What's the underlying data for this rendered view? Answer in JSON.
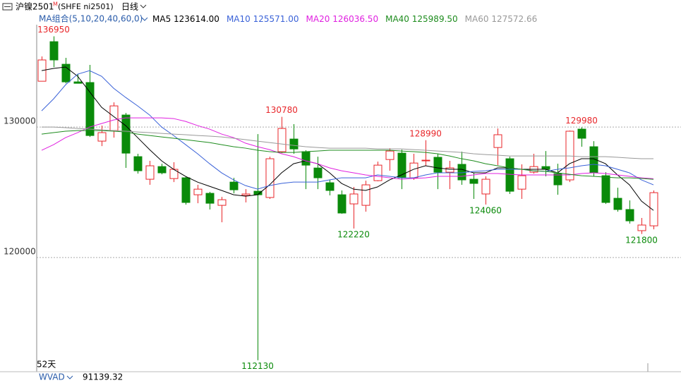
{
  "chart_data": {
    "type": "candlestick",
    "title": "沪镍2501",
    "title_badge": "M",
    "subtitle": "(SHFE ni2501)",
    "period": "日线",
    "indicator": "MA组合(5,10,20,40,60,0)",
    "x_label": "52天",
    "open": [
      133510,
      136540,
      134810,
      133460,
      133410,
      128920,
      129730,
      130920,
      127730,
      126000,
      126970,
      126050,
      126110,
      124810,
      124920,
      124000,
      125780,
      124760,
      125080,
      124600,
      128110,
      129080,
      128110,
      126860,
      125730,
      124810,
      124110,
      124000,
      125890,
      127510,
      128000,
      126110,
      127410,
      127680,
      126540,
      127140,
      126000,
      124870,
      128430,
      127570,
      125240,
      126540,
      126970,
      126430,
      125950,
      129840,
      128490,
      126270,
      124540,
      123680,
      122060,
      122430
    ],
    "high": [
      135410,
      136950,
      135300,
      134050,
      134760,
      130110,
      131890,
      131080,
      127950,
      127410,
      127190,
      127300,
      126220,
      125570,
      125030,
      124650,
      126110,
      125240,
      129460,
      127730,
      130780,
      130220,
      128220,
      127730,
      125950,
      125140,
      125410,
      125890,
      127350,
      128380,
      128270,
      127950,
      128990,
      127950,
      127410,
      128110,
      126490,
      126220,
      129890,
      127730,
      127140,
      127950,
      128160,
      127190,
      129730,
      129980,
      128920,
      126540,
      125350,
      124380,
      123030,
      125140
    ],
    "low": [
      133510,
      134590,
      133350,
      133350,
      129240,
      128540,
      129190,
      126870,
      126430,
      125570,
      126380,
      125780,
      124050,
      124160,
      123680,
      122700,
      124920,
      124220,
      112130,
      124490,
      128000,
      127950,
      125240,
      125240,
      124760,
      123350,
      122220,
      123510,
      125840,
      126650,
      125240,
      125950,
      127030,
      125240,
      125240,
      125570,
      124490,
      124060,
      127080,
      124870,
      124490,
      126430,
      126220,
      124810,
      125780,
      128490,
      126220,
      124110,
      123510,
      122600,
      121800,
      122160
    ],
    "close": [
      135140,
      135140,
      133460,
      133350,
      129350,
      129570,
      131620,
      128000,
      126650,
      127030,
      126490,
      126760,
      124220,
      125240,
      124160,
      124430,
      125190,
      124870,
      124810,
      127570,
      129890,
      128320,
      127080,
      126110,
      125140,
      123410,
      124870,
      125570,
      127080,
      128160,
      126110,
      127240,
      127460,
      126540,
      126870,
      125950,
      125680,
      126000,
      129410,
      125080,
      126270,
      126970,
      126760,
      125570,
      129680,
      129140,
      126490,
      124220,
      123680,
      122810,
      122490,
      124970
    ],
    "up_color": "#e8262a",
    "down_color": "#0a8a0a",
    "series": [
      {
        "name": "MA5",
        "color": "#000000",
        "current": {
          "value": 123614,
          "label": "123614.00"
        },
        "values": [
          134320,
          134490,
          134600,
          133890,
          132700,
          131510,
          130810,
          130110,
          129190,
          128270,
          127410,
          126760,
          126220,
          125780,
          125460,
          125140,
          124810,
          124700,
          124810,
          125570,
          126490,
          127190,
          127410,
          127190,
          126490,
          125680,
          125240,
          125140,
          125410,
          125950,
          126330,
          126760,
          127030,
          126870,
          126760,
          126760,
          126490,
          126490,
          126870,
          126870,
          126760,
          126760,
          126760,
          126490,
          127190,
          127570,
          127570,
          127190,
          126330,
          125570,
          124320,
          123614
        ]
      },
      {
        "name": "MA10",
        "color": "#3a62d8",
        "current": {
          "value": 125571,
          "label": "125571.00"
        },
        "values": [
          131240,
          132160,
          133240,
          134050,
          134320,
          133890,
          132970,
          132270,
          131620,
          130920,
          130000,
          129350,
          128650,
          127950,
          127190,
          126490,
          125950,
          125510,
          125240,
          125510,
          125680,
          125780,
          125780,
          125780,
          125950,
          126110,
          126110,
          126110,
          126330,
          126220,
          126110,
          126110,
          126330,
          126490,
          126490,
          126490,
          126600,
          126650,
          126760,
          126760,
          126760,
          126650,
          126600,
          126760,
          126870,
          127030,
          127140,
          127030,
          126760,
          126490,
          125950,
          125571
        ]
      },
      {
        "name": "MA20",
        "color": "#e020e0",
        "current": {
          "value": 126036.5,
          "label": "126036.50"
        },
        "values": [
          128220,
          128650,
          129190,
          129570,
          130000,
          130270,
          130540,
          130700,
          130700,
          130700,
          130700,
          130650,
          130430,
          130110,
          129840,
          129460,
          129190,
          128760,
          128490,
          128270,
          127950,
          127730,
          127410,
          127190,
          126870,
          126650,
          126490,
          126330,
          126220,
          126110,
          126000,
          126060,
          126110,
          126220,
          126220,
          126220,
          126330,
          126440,
          126440,
          126380,
          126330,
          126330,
          126330,
          126330,
          126330,
          126440,
          126490,
          126440,
          126330,
          126220,
          126110,
          126036.5
        ]
      },
      {
        "name": "MA40",
        "color": "#1e8c1e",
        "current": {
          "value": 125989.5,
          "label": "125989.50"
        },
        "values": [
          129460,
          129570,
          129680,
          129730,
          129730,
          129730,
          129680,
          129620,
          129460,
          129350,
          129240,
          129140,
          129030,
          128920,
          128810,
          128650,
          128490,
          128380,
          128220,
          128110,
          128050,
          128050,
          128110,
          128160,
          128220,
          128220,
          128220,
          128220,
          128220,
          128220,
          128160,
          128110,
          128050,
          127950,
          127780,
          127570,
          127410,
          127190,
          127030,
          126870,
          126760,
          126650,
          126600,
          126490,
          126380,
          126270,
          126220,
          126160,
          126110,
          126110,
          126060,
          125989.5
        ]
      },
      {
        "name": "MA60",
        "color": "#999999",
        "current": {
          "value": 127572.66,
          "label": "127572.66"
        },
        "values": [
          130000,
          130000,
          129950,
          129890,
          129840,
          129780,
          129730,
          129680,
          129620,
          129570,
          129510,
          129460,
          129410,
          129350,
          129300,
          129240,
          129140,
          129030,
          128920,
          128810,
          128700,
          128590,
          128490,
          128430,
          128380,
          128380,
          128380,
          128380,
          128320,
          128320,
          128320,
          128270,
          128220,
          128160,
          128110,
          128050,
          127950,
          127890,
          127840,
          127780,
          127780,
          127780,
          127780,
          127780,
          127780,
          127730,
          127730,
          127730,
          127680,
          127620,
          127570,
          127572.66
        ]
      }
    ],
    "ylim": [
      111250,
      137680
    ],
    "yticks": [
      120000,
      130000
    ],
    "grid": true,
    "lower_panel": {
      "name": "WVAD",
      "value": 91139.32
    }
  }
}
